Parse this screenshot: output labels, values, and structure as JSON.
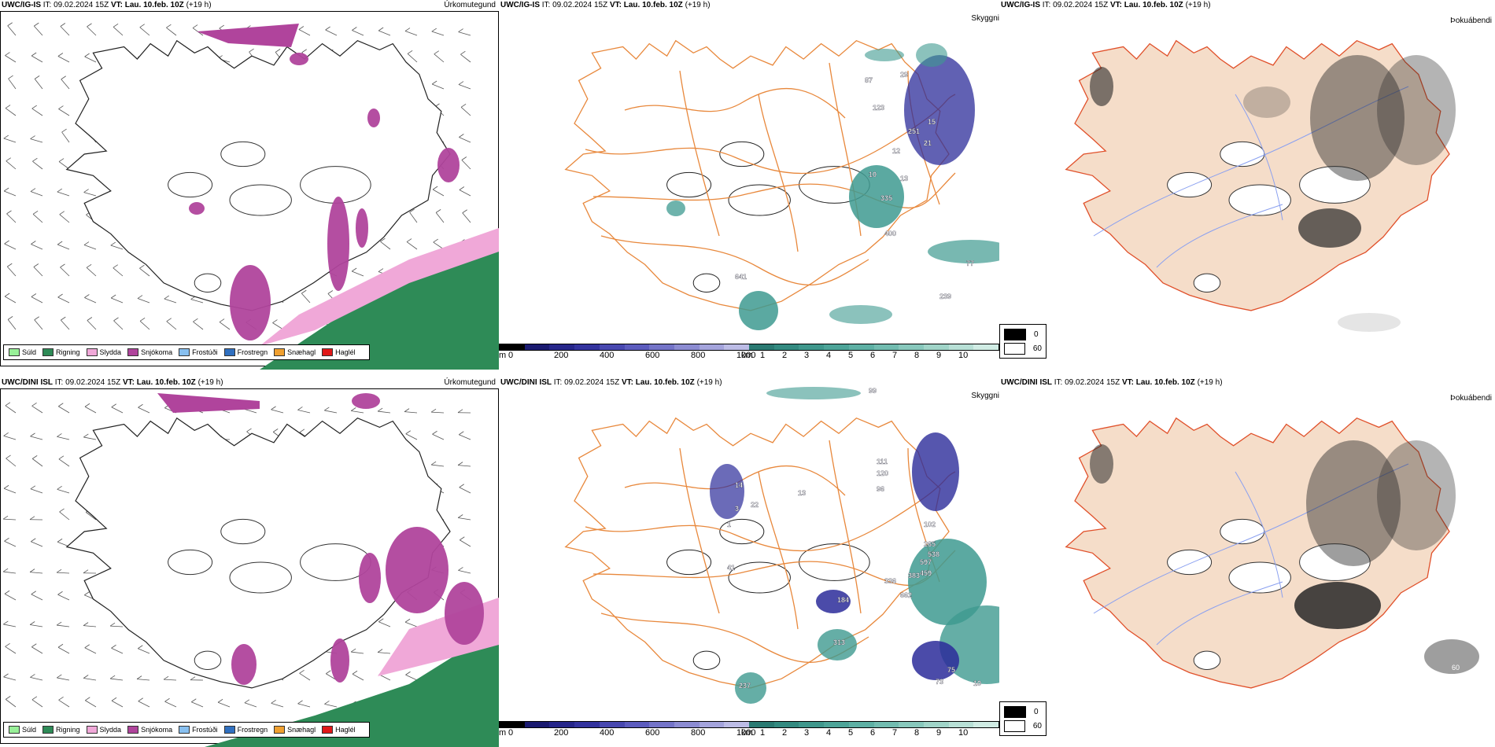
{
  "rows": [
    {
      "model": "UWC/IG-IS",
      "it_label": "IT:",
      "it_value": "09.02.2024 15Z",
      "vt_label": "VT:",
      "vt_value": "Lau. 10.feb. 10Z",
      "lead": "(+19 h)",
      "map_labels": [
        "87",
        "29",
        "123",
        "15",
        "251",
        "12",
        "21",
        "13",
        "10",
        "335",
        "400",
        "641",
        "77",
        "239"
      ],
      "fog_labels": []
    },
    {
      "model": "UWC/DINI ISL",
      "it_label": "IT:",
      "it_value": "09.02.2024 15Z",
      "vt_label": "VT:",
      "vt_value": "Lau. 10.feb. 10Z",
      "lead": "(+19 h)",
      "map_labels": [
        "99",
        "14",
        "111",
        "120",
        "96",
        "3",
        "22",
        "1",
        "102",
        "265",
        "538",
        "597",
        "459",
        "336",
        "383",
        "662",
        "184",
        "313",
        "75",
        "73",
        "10",
        "237",
        "13",
        "41"
      ],
      "fog_labels": [
        "60"
      ]
    }
  ],
  "panel_titles": {
    "precip_type": "Úrkomutegund",
    "visibility": "Skyggni",
    "fog": "Þokuábendi"
  },
  "precip_legend": [
    {
      "label": "Súld",
      "color": "#98f098"
    },
    {
      "label": "Rigning",
      "color": "#2e8b57"
    },
    {
      "label": "Slydda",
      "color": "#f0a8d8"
    },
    {
      "label": "Snjókoma",
      "color": "#b0449c"
    },
    {
      "label": "Frostúði",
      "color": "#88c0f0"
    },
    {
      "label": "Frostregn",
      "color": "#3070c0"
    },
    {
      "label": "Snæhagl",
      "color": "#f0a030"
    },
    {
      "label": "Haglél",
      "color": "#e01818"
    }
  ],
  "visibility_scale": {
    "m_unit": "m",
    "m_ticks": [
      "0",
      "200",
      "400",
      "600",
      "800",
      "1000"
    ],
    "km_unit": "km",
    "km_ticks": [
      "1",
      "2",
      "3",
      "4",
      "5",
      "6",
      "7",
      "8",
      "9",
      "10"
    ],
    "m_colors": [
      "#000000",
      "#1a1a70",
      "#26268a",
      "#33339e",
      "#4848b0",
      "#5c5cbe",
      "#7474c8",
      "#8c8cd2",
      "#a4a4dc",
      "#bcbce6"
    ],
    "km_colors": [
      "#2a7a72",
      "#338a80",
      "#3f978c",
      "#4da498",
      "#5eb0a4",
      "#72bcb0",
      "#88c8bc",
      "#a0d4c8",
      "#b8e0d6",
      "#d0ece4"
    ]
  },
  "fog_legend": [
    {
      "label": "0",
      "color": "#000000"
    },
    {
      "label": "60",
      "color": "#ffffff"
    }
  ],
  "colors": {
    "land_fog": "#f5ddc9",
    "roads": "#e8883c",
    "rain": "#2e8b57",
    "snow": "#b0449c",
    "sleet": "#f0a8d8",
    "vis_dense": "#2c2c9a",
    "vis_light": "#3e9a90"
  }
}
